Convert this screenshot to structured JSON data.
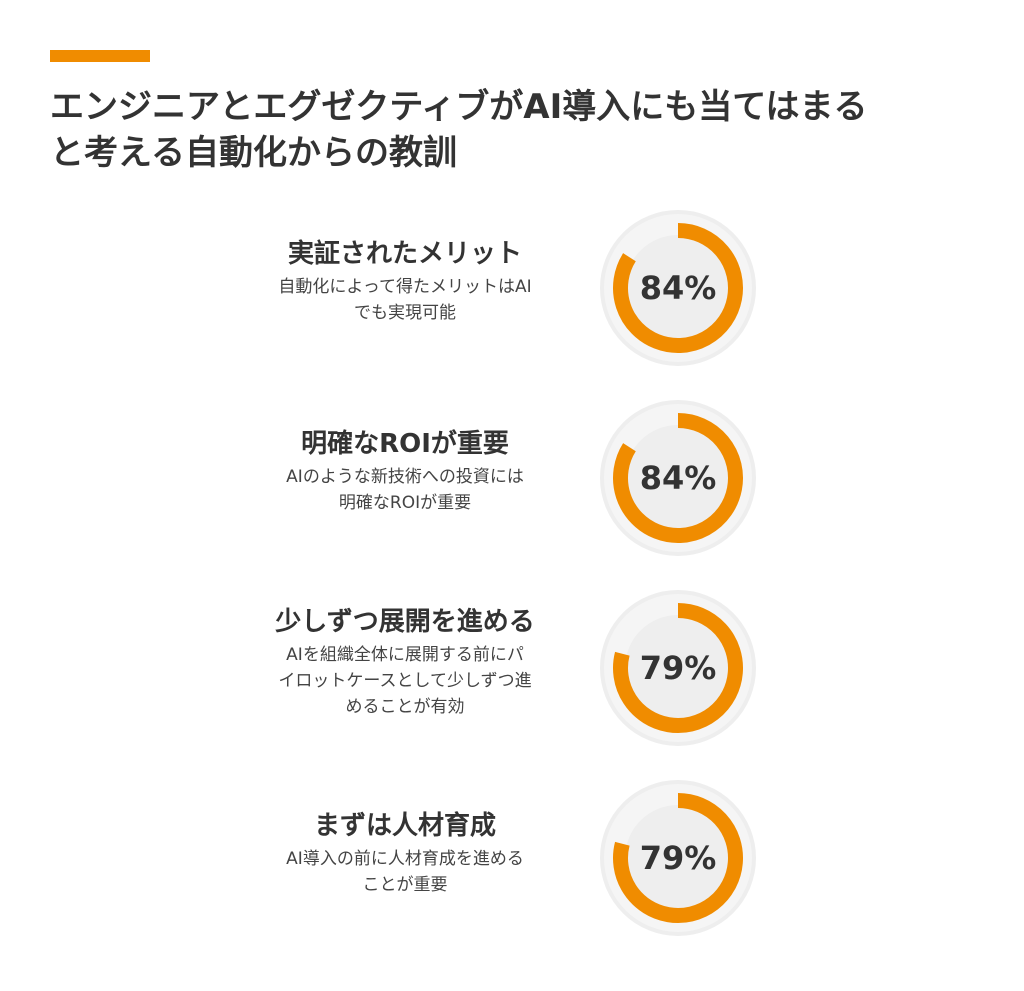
{
  "title_lines": [
    "エンジニアとエグゼクティブがAI導入にも当てはまる",
    "と考える自動化からの教訓"
  ],
  "colors": {
    "accent": "#f08c00",
    "ring_track": "#eeeeee",
    "center_fill": "#eeeeee",
    "text": "#333333"
  },
  "items": [
    {
      "heading": "実証されたメリット",
      "desc_lines": [
        "自動化によって得たメリットはAI",
        "でも実現可能"
      ],
      "value_label": "84%"
    },
    {
      "heading": "明確なROIが重要",
      "desc_lines": [
        "AIのような新技術への投資には",
        "明確なROIが重要"
      ],
      "value_label": "84%"
    },
    {
      "heading": "少しずつ展開を進める",
      "desc_lines": [
        "AIを組織全体に展開する前にパ",
        "イロットケースとして少しずつ進",
        "めることが有効"
      ],
      "value_label": "79%"
    },
    {
      "heading": "まずは人材育成",
      "desc_lines": [
        "AI導入の前に人材育成を進める",
        "ことが重要"
      ],
      "value_label": "79%"
    }
  ],
  "chart_data": {
    "type": "pie",
    "categories": [
      "実証されたメリット",
      "明確なROIが重要",
      "少しずつ展開を進める",
      "まずは人材育成"
    ],
    "values": [
      84,
      84,
      79,
      79
    ],
    "title": "エンジニアとエグゼクティブがAI導入にも当てはまると考える自動化からの教訓"
  }
}
